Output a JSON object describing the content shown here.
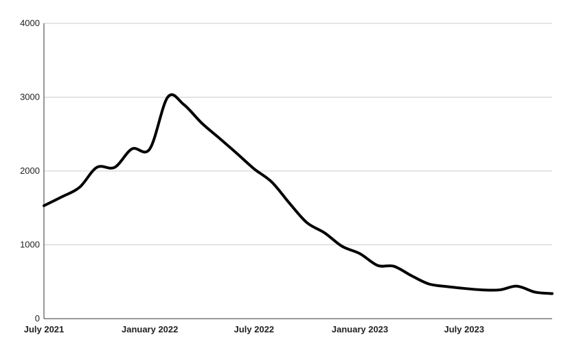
{
  "chart_data": {
    "type": "line",
    "title": "",
    "xlabel": "",
    "ylabel": "",
    "xlim": [
      "2021-07-01",
      "2023-12-01"
    ],
    "ylim": [
      0,
      4000
    ],
    "y_ticks": [
      0,
      1000,
      2000,
      3000,
      4000
    ],
    "y_tick_labels": [
      "0",
      "1000",
      "2000",
      "3000",
      "4000"
    ],
    "x_ticks": [
      "2021-07-01",
      "2022-01-01",
      "2022-07-01",
      "2023-01-01",
      "2023-07-01"
    ],
    "x_tick_labels": [
      "July 2021",
      "January 2022",
      "July 2022",
      "January 2023",
      "July 2023"
    ],
    "grid": true,
    "line_color": "#000000",
    "series": [
      {
        "x": [
          "2021-07-01",
          "2021-08-01",
          "2021-09-01",
          "2021-10-01",
          "2021-11-01",
          "2021-12-01",
          "2022-01-01",
          "2022-02-01",
          "2022-03-01",
          "2022-04-01",
          "2022-05-01",
          "2022-06-01",
          "2022-07-01",
          "2022-08-01",
          "2022-09-01",
          "2022-10-01",
          "2022-11-01",
          "2022-12-01",
          "2023-01-01",
          "2023-02-01",
          "2023-03-01",
          "2023-04-01",
          "2023-05-01",
          "2023-06-01",
          "2023-07-01",
          "2023-08-01",
          "2023-09-01",
          "2023-10-01",
          "2023-11-01",
          "2023-12-01"
        ],
        "values": [
          1530,
          1650,
          1780,
          2050,
          2050,
          2300,
          2300,
          3000,
          2900,
          2650,
          2450,
          2240,
          2030,
          1850,
          1560,
          1300,
          1160,
          980,
          880,
          720,
          710,
          580,
          470,
          435,
          410,
          390,
          390,
          440,
          360,
          340
        ]
      }
    ]
  }
}
